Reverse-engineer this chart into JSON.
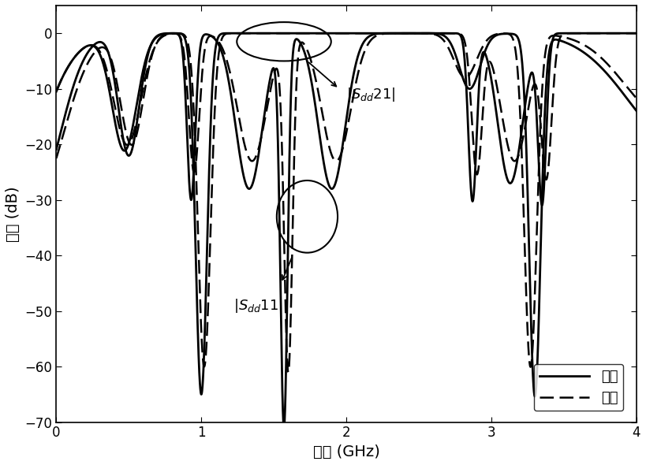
{
  "xlabel": "频率 (GHz)",
  "ylabel": "幅値 (dB)",
  "xlim": [
    0,
    4
  ],
  "ylim": [
    -70,
    5
  ],
  "yticks": [
    0,
    -10,
    -20,
    -30,
    -40,
    -50,
    -60,
    -70
  ],
  "xticks": [
    0,
    1,
    2,
    3,
    4
  ],
  "legend_solid": "仿真",
  "legend_dashed": "测试",
  "figsize": [
    8.19,
    5.9
  ],
  "dpi": 100
}
